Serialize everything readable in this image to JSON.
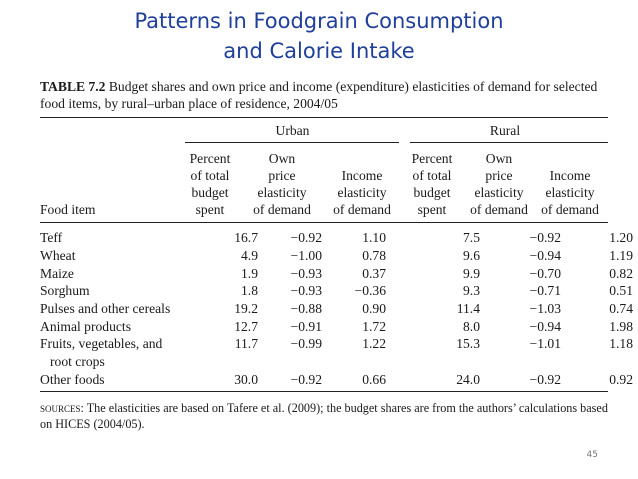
{
  "title": {
    "line1": "Patterns in Foodgrain Consumption",
    "line2": "and Calorie Intake"
  },
  "caption": {
    "label": "TABLE 7.2",
    "text": " Budget shares and own price and income (expenditure) elasticities of demand for selected food items, by rural–urban place of residence, 2004/05"
  },
  "groups": {
    "urban": "Urban",
    "rural": "Rural"
  },
  "headers": {
    "food_item": "Food item",
    "u_pct": "Percent\nof total\nbudget\nspent",
    "u_own": "Own\nprice\nelasticity\nof demand",
    "u_inc": "Income\nelasticity\nof demand",
    "r_pct": "Percent\nof total\nbudget\nspent",
    "r_own": "Own\nprice\nelasticity\nof demand",
    "r_inc": "Income\nelasticity\nof demand"
  },
  "rows": [
    {
      "food": "Teff",
      "u_pct": "16.7",
      "u_own": "−0.92",
      "u_inc": "1.10",
      "r_pct": "7.5",
      "r_own": "−0.92",
      "r_inc": "1.20"
    },
    {
      "food": "Wheat",
      "u_pct": "4.9",
      "u_own": "−1.00",
      "u_inc": "0.78",
      "r_pct": "9.6",
      "r_own": "−0.94",
      "r_inc": "1.19"
    },
    {
      "food": "Maize",
      "u_pct": "1.9",
      "u_own": "−0.93",
      "u_inc": "0.37",
      "r_pct": "9.9",
      "r_own": "−0.70",
      "r_inc": "0.82"
    },
    {
      "food": "Sorghum",
      "u_pct": "1.8",
      "u_own": "−0.93",
      "u_inc": "−0.36",
      "r_pct": "9.3",
      "r_own": "−0.71",
      "r_inc": "0.51"
    },
    {
      "food": "Pulses and other cereals",
      "u_pct": "19.2",
      "u_own": "−0.88",
      "u_inc": "0.90",
      "r_pct": "11.4",
      "r_own": "−1.03",
      "r_inc": "0.74"
    },
    {
      "food": "Animal products",
      "u_pct": "12.7",
      "u_own": "−0.91",
      "u_inc": "1.72",
      "r_pct": "8.0",
      "r_own": "−0.94",
      "r_inc": "1.98"
    },
    {
      "food": "Fruits, vegetables, and",
      "food2": "root crops",
      "u_pct": "11.7",
      "u_own": "−0.99",
      "u_inc": "1.22",
      "r_pct": "15.3",
      "r_own": "−1.01",
      "r_inc": "1.18"
    },
    {
      "food": "Other foods",
      "u_pct": "30.0",
      "u_own": "−0.92",
      "u_inc": "0.66",
      "r_pct": "24.0",
      "r_own": "−0.92",
      "r_inc": "0.92"
    }
  ],
  "sources": {
    "label": "sources:",
    "text": " The elasticities are based on Tafere et al. (2009); the budget shares are from the authors’ calculations based on HICES (2004/05)."
  },
  "page_number": "45"
}
